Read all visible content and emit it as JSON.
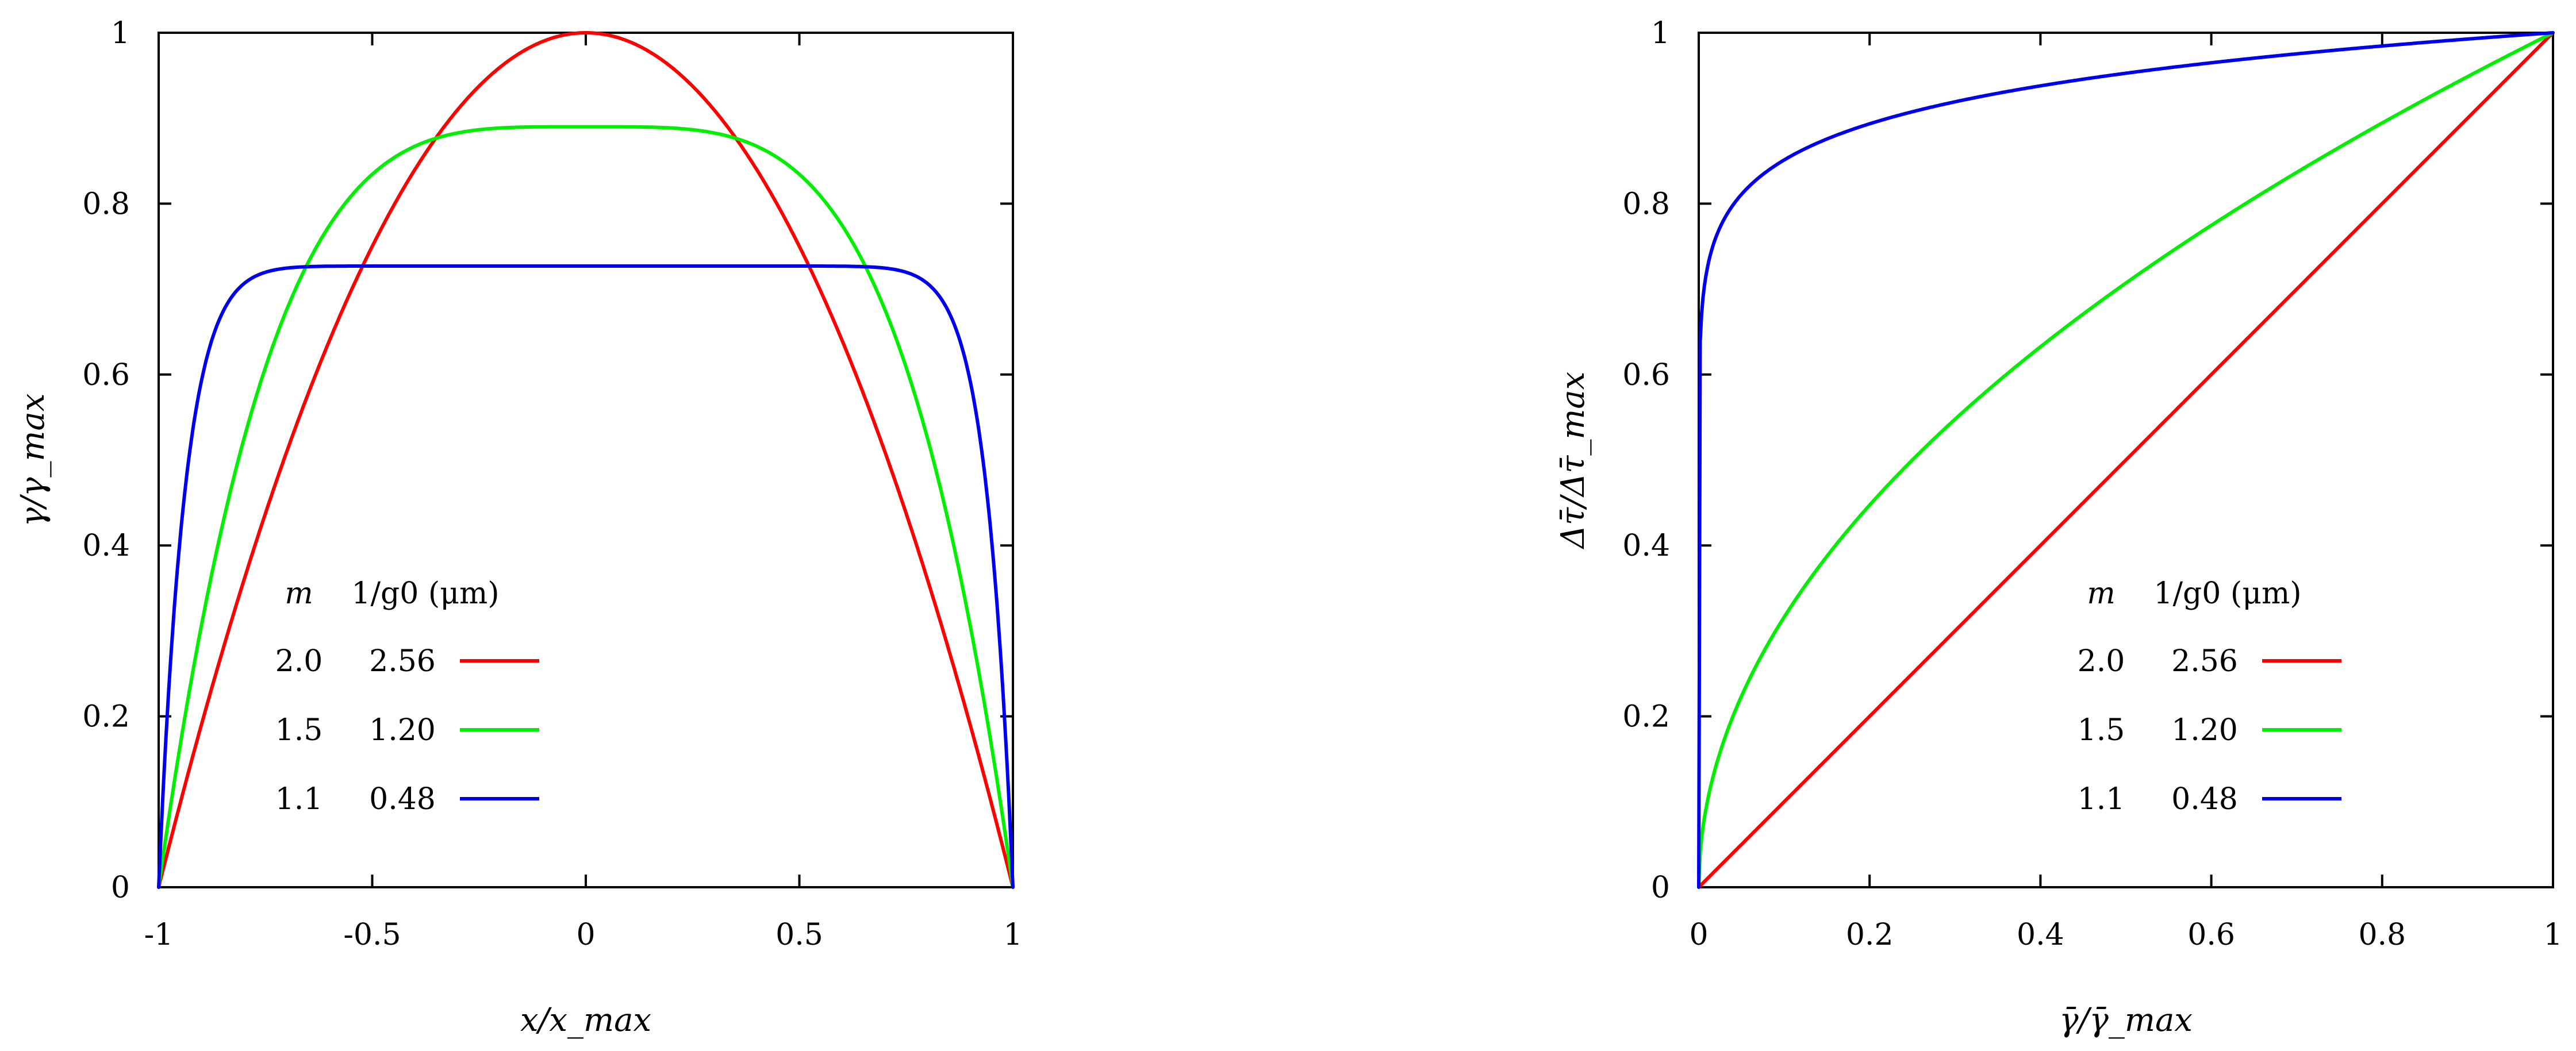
{
  "chart_data": [
    {
      "type": "line",
      "xlabel": "x/x_max",
      "ylabel": "γ/γ_max",
      "xlim": [
        -1,
        1
      ],
      "ylim": [
        0,
        1
      ],
      "xticks": [
        "-1",
        "-0.5",
        "0",
        "0.5",
        "1"
      ],
      "yticks": [
        "0",
        "0.2",
        "0.4",
        "0.6",
        "0.8",
        "1"
      ],
      "legend": {
        "placement": "lower-center",
        "header_m": "m",
        "header_g": "1/g0 (μm)"
      },
      "grid": false,
      "series": [
        {
          "name": "2.0  2.56",
          "m": "2.0",
          "g": "2.56",
          "color": "#ff0000",
          "x": [
            -1,
            -0.75,
            -0.5,
            -0.25,
            0,
            0.25,
            0.5,
            0.75,
            1
          ],
          "y": [
            0,
            0.44,
            0.75,
            0.94,
            1.0,
            0.94,
            0.75,
            0.44,
            0
          ]
        },
        {
          "name": "1.5  1.20",
          "m": "1.5",
          "g": "1.20",
          "color": "#00ee00",
          "x": [
            -1,
            -0.75,
            -0.5,
            -0.25,
            0,
            0.25,
            0.5,
            0.75,
            1
          ],
          "y": [
            0,
            0.51,
            0.8,
            0.88,
            0.89,
            0.88,
            0.8,
            0.51,
            0
          ]
        },
        {
          "name": "1.1  0.48",
          "m": "1.1",
          "g": "0.48",
          "color": "#0000ee",
          "x": [
            -1,
            -0.75,
            -0.5,
            -0.25,
            0,
            0.25,
            0.5,
            0.75,
            1
          ],
          "y": [
            0,
            0.72,
            0.727,
            0.727,
            0.727,
            0.727,
            0.727,
            0.72,
            0
          ]
        }
      ]
    },
    {
      "type": "line",
      "xlabel": "γ̄/γ̄_max",
      "ylabel": "Δτ̄/Δτ̄_max",
      "xlim": [
        0,
        1
      ],
      "ylim": [
        0,
        1
      ],
      "xticks": [
        "0",
        "0.2",
        "0.4",
        "0.6",
        "0.8",
        "1"
      ],
      "yticks": [
        "0",
        "0.2",
        "0.4",
        "0.6",
        "0.8",
        "1"
      ],
      "legend": {
        "placement": "lower-right",
        "header_m": "m",
        "header_g": "1/g0 (μm)"
      },
      "grid": false,
      "series": [
        {
          "name": "2.0  2.56",
          "m": "2.0",
          "g": "2.56",
          "color": "#ff0000",
          "x": [
            0,
            0.2,
            0.4,
            0.6,
            0.8,
            1
          ],
          "y": [
            0,
            0.2,
            0.4,
            0.6,
            0.8,
            1
          ]
        },
        {
          "name": "1.5  1.20",
          "m": "1.5",
          "g": "1.20",
          "color": "#00ee00",
          "x": [
            0,
            0.2,
            0.4,
            0.6,
            0.8,
            1
          ],
          "y": [
            0,
            0.54,
            0.68,
            0.79,
            0.89,
            1
          ]
        },
        {
          "name": "1.1  0.48",
          "m": "1.1",
          "g": "0.48",
          "color": "#0000ee",
          "x": [
            0,
            0.05,
            0.2,
            0.4,
            0.6,
            0.8,
            1
          ],
          "y": [
            0,
            0.78,
            0.85,
            0.9,
            0.93,
            0.96,
            1
          ]
        }
      ]
    }
  ]
}
